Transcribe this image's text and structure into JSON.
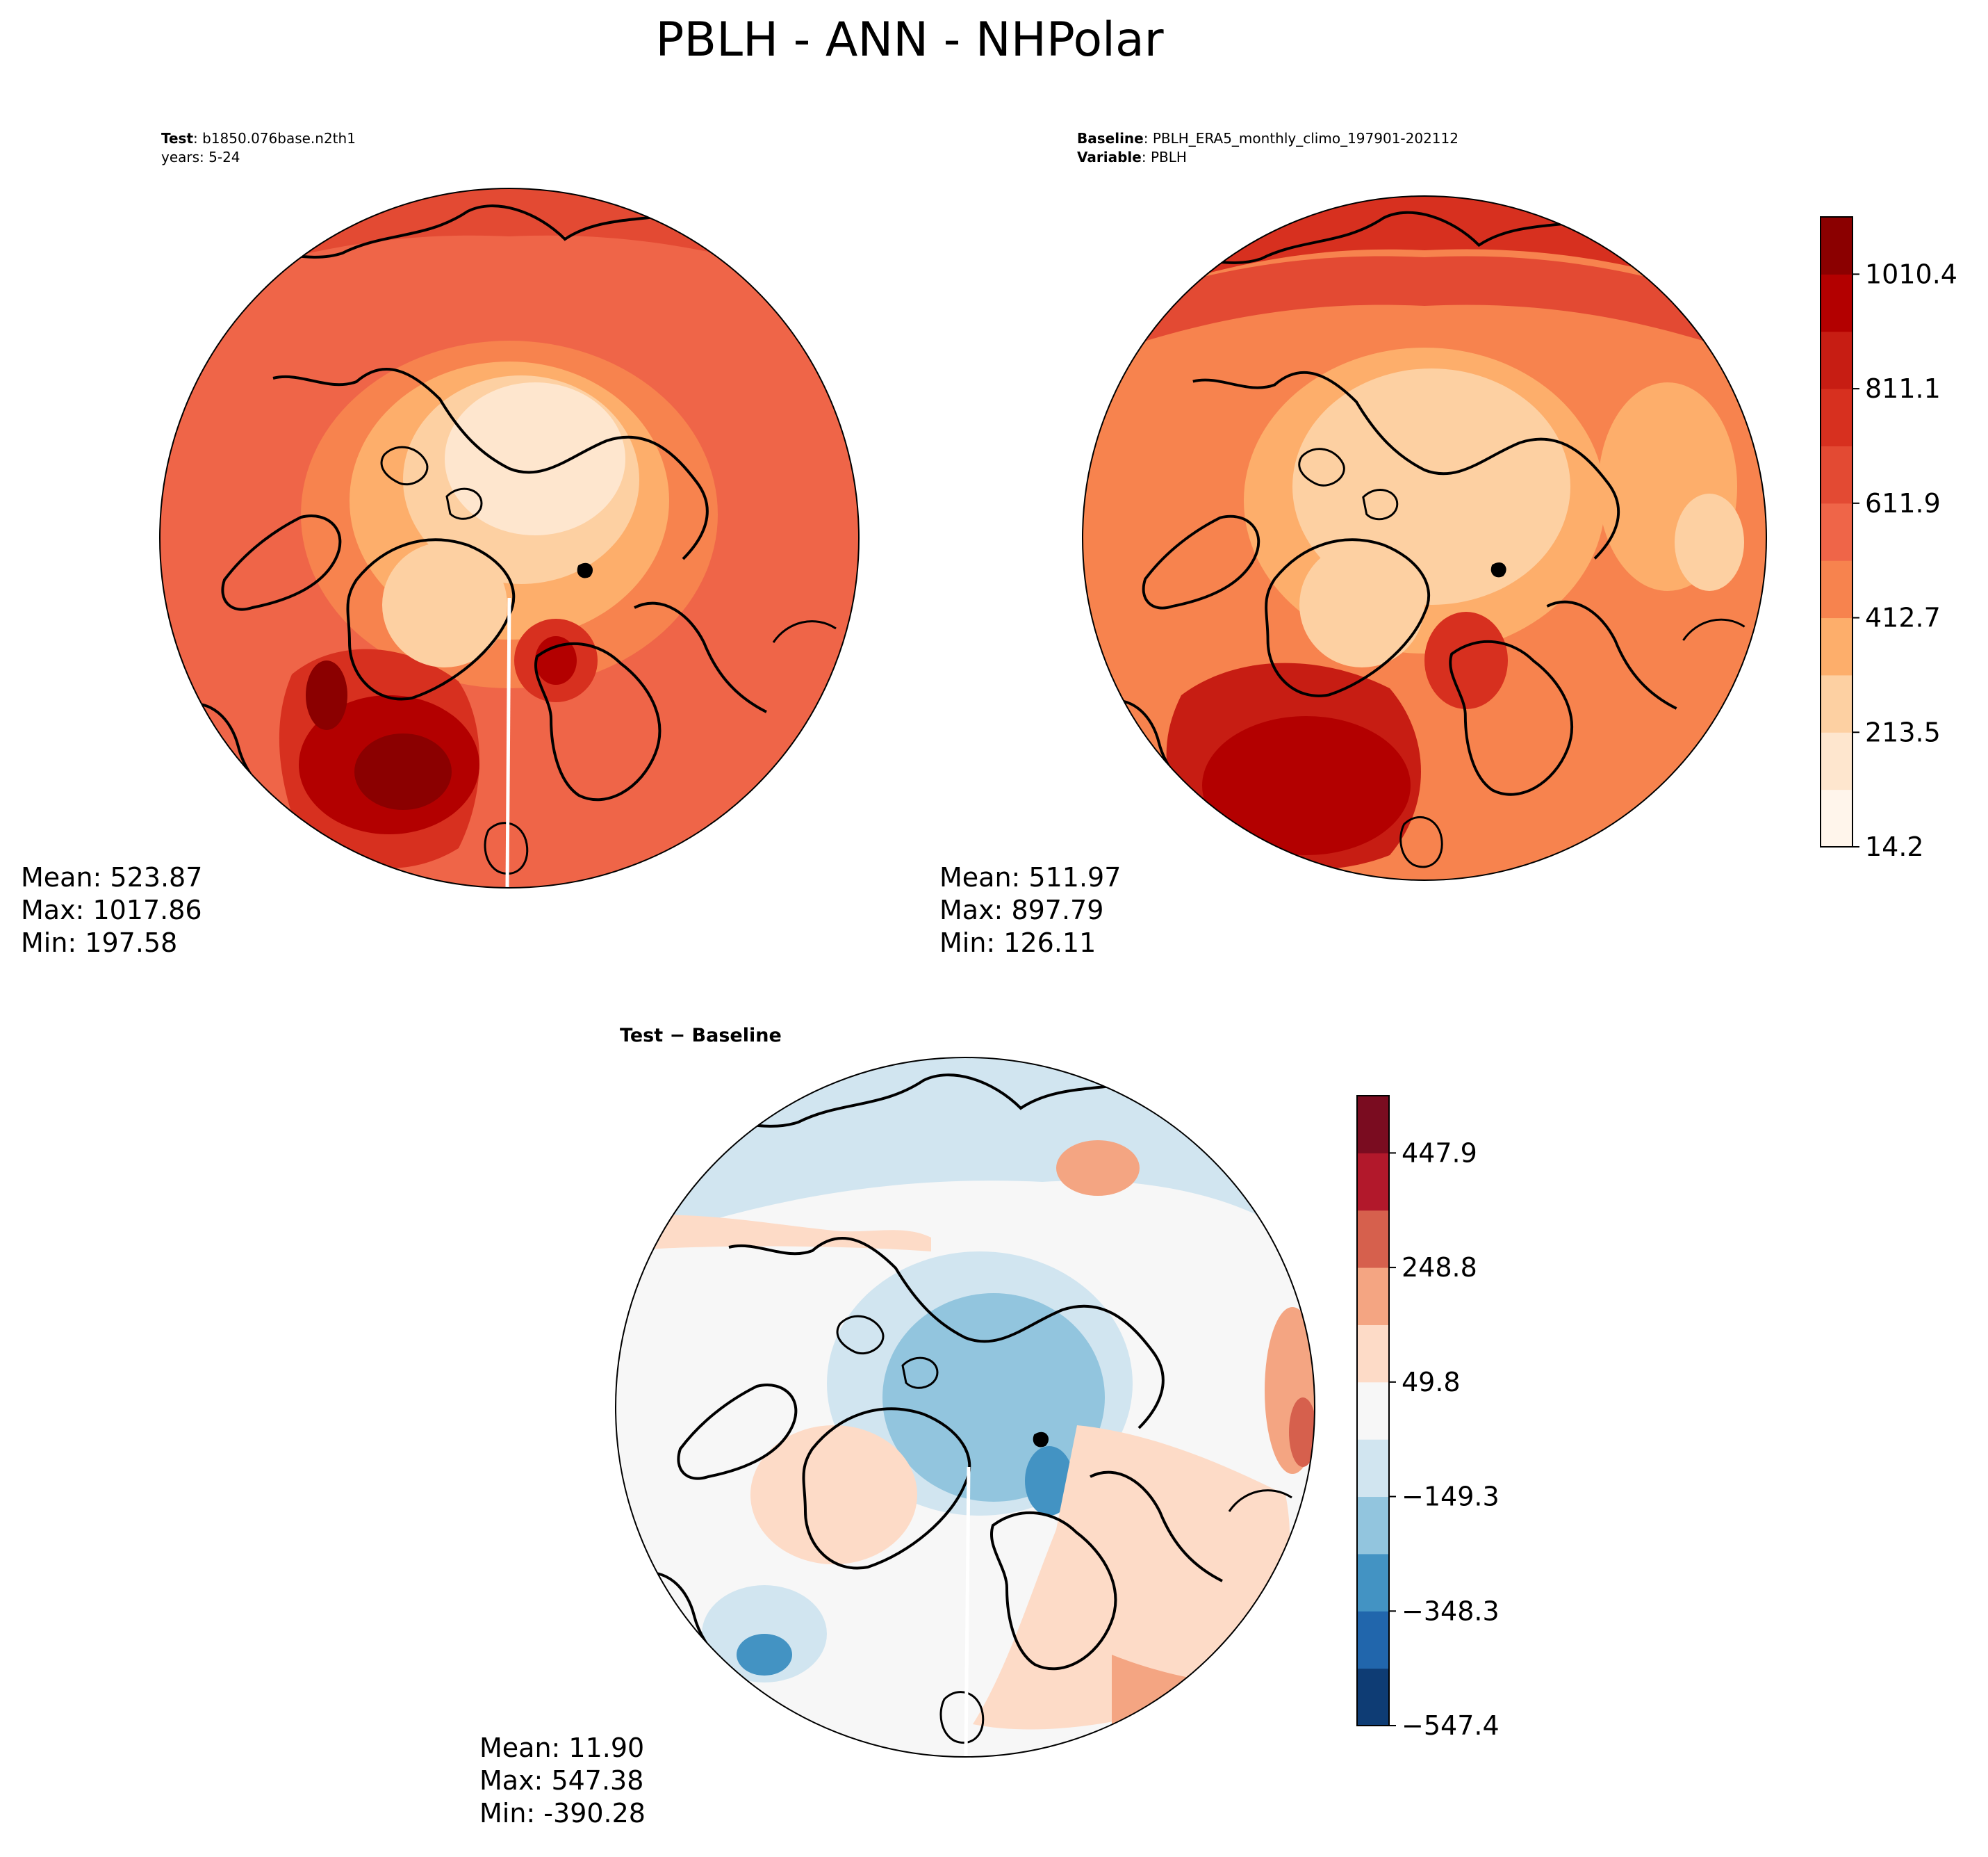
{
  "figure": {
    "title": "PBLH - ANN - NHPolar"
  },
  "panels": {
    "test": {
      "label_bold": "Test",
      "label_value": "b1850.076base.n2th1",
      "subtitle": "years: 5-24",
      "stats": {
        "mean": "Mean: 523.87",
        "max": "Max: 1017.86",
        "min": "Min: 197.58"
      }
    },
    "baseline": {
      "label_bold": "Baseline",
      "label_value": "PBLH_ERA5_monthly_climo_197901-202112",
      "variable_bold": "Variable",
      "variable_value": "PBLH",
      "stats": {
        "mean": "Mean: 511.97",
        "max": "Max: 897.79",
        "min": "Min: 126.11"
      }
    },
    "diff": {
      "title_bold": "Test − Baseline",
      "stats": {
        "mean": "Mean: 11.90",
        "max": "Max: 547.38",
        "min": "Min: -390.28"
      }
    }
  },
  "colorbars": {
    "main": {
      "ticks": [
        "14.2",
        "213.5",
        "412.7",
        "611.9",
        "811.1",
        "1010.4"
      ],
      "levels_count": 11,
      "colors": [
        "#fff5eb",
        "#fee6ce",
        "#fdd0a2",
        "#fdae6b",
        "#f7834e",
        "#ef6548",
        "#e34a33",
        "#d7301f",
        "#c71d13",
        "#b30000",
        "#8b0000"
      ]
    },
    "diff": {
      "ticks": [
        "−547.4",
        "−348.3",
        "−149.3",
        "49.8",
        "248.8",
        "447.9"
      ],
      "levels_count": 11,
      "colors": [
        "#0e3c74",
        "#2166ac",
        "#4393c3",
        "#92c5de",
        "#d1e5f0",
        "#f7f7f7",
        "#fddbc7",
        "#f4a582",
        "#d6604d",
        "#b2182b",
        "#7a0c20"
      ]
    }
  }
}
